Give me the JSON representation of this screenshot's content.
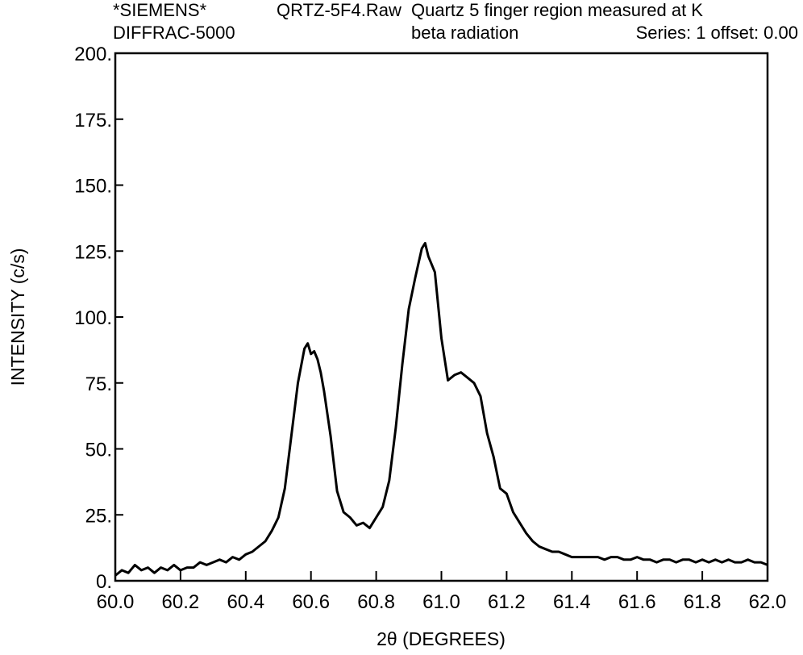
{
  "header": {
    "line1_left": "*SIEMENS*",
    "line2_left": "DIFFRAC-5000",
    "file_name": "QRTZ-5F4.Raw",
    "description_line1": "Quartz 5 finger region measured at K",
    "description_line2": "beta radiation",
    "series_info": "Series: 1 offset: 0.00"
  },
  "chart_data": {
    "type": "line",
    "xlabel": "2θ (DEGREES)",
    "ylabel": "INTENSITY (c/s)",
    "xlim": [
      60.0,
      62.0
    ],
    "ylim": [
      0,
      200
    ],
    "x_tick_labels": [
      "60.0",
      "60.2",
      "60.4",
      "60.6",
      "60.8",
      "61.0",
      "61.2",
      "61.4",
      "61.6",
      "61.8",
      "62.0"
    ],
    "y_tick_labels": [
      "0.",
      "25.",
      "50.",
      "75.",
      "100.",
      "125.",
      "150.",
      "175.",
      "200."
    ],
    "grid": false,
    "line_color": "#000000",
    "series": [
      {
        "x": [
          60.0,
          60.02,
          60.04,
          60.06,
          60.08,
          60.1,
          60.12,
          60.14,
          60.16,
          60.18,
          60.2,
          60.22,
          60.24,
          60.26,
          60.28,
          60.3,
          60.32,
          60.34,
          60.36,
          60.38,
          60.4,
          60.42,
          60.44,
          60.46,
          60.48,
          60.5,
          60.52,
          60.54,
          60.56,
          60.58,
          60.59,
          60.6,
          60.61,
          60.62,
          60.63,
          60.64,
          60.66,
          60.68,
          60.7,
          60.72,
          60.74,
          60.76,
          60.78,
          60.8,
          60.82,
          60.84,
          60.86,
          60.88,
          60.9,
          60.92,
          60.94,
          60.95,
          60.96,
          60.98,
          61.0,
          61.02,
          61.04,
          61.06,
          61.08,
          61.1,
          61.12,
          61.14,
          61.16,
          61.18,
          61.2,
          61.22,
          61.24,
          61.26,
          61.28,
          61.3,
          61.32,
          61.34,
          61.36,
          61.38,
          61.4,
          61.42,
          61.44,
          61.46,
          61.48,
          61.5,
          61.52,
          61.54,
          61.56,
          61.58,
          61.6,
          61.62,
          61.64,
          61.66,
          61.68,
          61.7,
          61.72,
          61.74,
          61.76,
          61.78,
          61.8,
          61.82,
          61.84,
          61.86,
          61.88,
          61.9,
          61.92,
          61.94,
          61.96,
          61.98,
          62.0
        ],
        "y": [
          2,
          4,
          3,
          6,
          4,
          5,
          3,
          5,
          4,
          6,
          4,
          5,
          5,
          7,
          6,
          7,
          8,
          7,
          9,
          8,
          10,
          11,
          13,
          15,
          19,
          24,
          35,
          55,
          75,
          88,
          90,
          86,
          87,
          84,
          79,
          72,
          55,
          34,
          26,
          24,
          21,
          22,
          20,
          24,
          28,
          38,
          58,
          82,
          103,
          115,
          126,
          128,
          123,
          117,
          92,
          76,
          78,
          79,
          77,
          75,
          70,
          56,
          47,
          35,
          33,
          26,
          22,
          18,
          15,
          13,
          12,
          11,
          11,
          10,
          9,
          9,
          9,
          9,
          9,
          8,
          9,
          9,
          8,
          8,
          9,
          8,
          8,
          7,
          8,
          8,
          7,
          8,
          8,
          7,
          8,
          7,
          8,
          7,
          8,
          7,
          7,
          8,
          7,
          7,
          6
        ]
      }
    ]
  }
}
